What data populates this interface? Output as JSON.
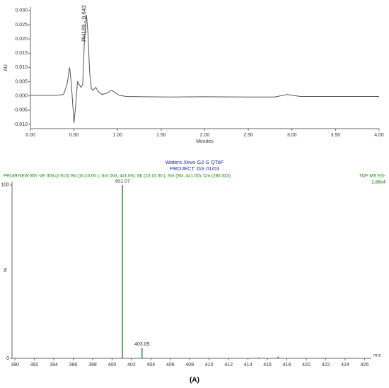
{
  "chart_data": [
    {
      "type": "line",
      "ylabel": "AU",
      "xlabel": "Minutes",
      "annotation": "PH189 - 0.643",
      "color": "#555555",
      "x": [
        0,
        0.1,
        0.2,
        0.3,
        0.38,
        0.42,
        0.45,
        0.47,
        0.5,
        0.52,
        0.54,
        0.56,
        0.58,
        0.6,
        0.62,
        0.643,
        0.66,
        0.68,
        0.7,
        0.72,
        0.75,
        0.78,
        0.82,
        0.88,
        0.93,
        0.97,
        1.02,
        1.1,
        1.3,
        1.6,
        2.0,
        2.5,
        2.8,
        2.9,
        2.95,
        3.0,
        3.1,
        3.5,
        4.0
      ],
      "values": [
        0.0002,
        0.0002,
        0.0002,
        0.0002,
        0.0005,
        0.004,
        0.01,
        0.004,
        -0.0095,
        -0.003,
        0.005,
        0.004,
        0.003,
        0.004,
        0.02,
        0.0285,
        0.022,
        0.008,
        0.0025,
        0.002,
        0.003,
        0.0015,
        0.0005,
        0.001,
        0.002,
        0.0012,
        0.0002,
        -0.0002,
        -0.0003,
        -0.0004,
        -0.0003,
        -0.0004,
        -0.0004,
        0.0002,
        0.0005,
        0.0002,
        -0.0002,
        -0.0002,
        -0.0002
      ],
      "xlim": [
        0,
        4.0
      ],
      "ylim": [
        -0.0115,
        0.0312
      ],
      "xticks": [
        {
          "value": 0,
          "label": "0.00"
        },
        {
          "value": 0.5,
          "label": "0.50"
        },
        {
          "value": 1,
          "label": "1.00"
        },
        {
          "value": 1.5,
          "label": "1.50"
        },
        {
          "value": 2,
          "label": "2.00"
        },
        {
          "value": 2.5,
          "label": "2.50"
        },
        {
          "value": 3,
          "label": "3.00"
        },
        {
          "value": 3.5,
          "label": "3.50"
        },
        {
          "value": 4,
          "label": "4.00"
        }
      ],
      "yticks": [
        {
          "value": -0.01,
          "label": "-0.010"
        },
        {
          "value": -0.005,
          "label": "-0.005"
        },
        {
          "value": 0,
          "label": "0.000"
        },
        {
          "value": 0.005,
          "label": "0.005"
        },
        {
          "value": 0.01,
          "label": "0.010"
        },
        {
          "value": 0.015,
          "label": "0.015"
        },
        {
          "value": 0.02,
          "label": "0.020"
        },
        {
          "value": 0.025,
          "label": "0.025"
        },
        {
          "value": 0.03,
          "label": "0.030"
        }
      ]
    },
    {
      "type": "bar",
      "title": "Waters Xevo G2-S QToF",
      "subtitle": "PROJECT: GS 01/03",
      "scan_info": "PH189 NEW MS -VE  303 (2.615) Sb (10,10.00 ); Sm (SG, 4x1.00); Sb (10,10.00 ); Sm (SG, 4x1.00); Cm (280:333)",
      "instrument": "TOF MS ES-",
      "intensity": "1.88e4",
      "ylabel": "%",
      "xlabel": "m/z",
      "color": "#008000",
      "x": [
        401.07,
        403.09,
        415.1,
        417.1
      ],
      "values": [
        100,
        6,
        0.5,
        1
      ],
      "xlim": [
        389.7,
        426.7
      ],
      "ylim": [
        0,
        102
      ],
      "xticks": [
        390,
        392,
        394,
        396,
        398,
        400,
        402,
        404,
        406,
        408,
        410,
        412,
        414,
        416,
        418,
        420,
        422,
        424,
        426
      ],
      "yticks": [
        0,
        100
      ]
    }
  ],
  "caption": "(A)"
}
